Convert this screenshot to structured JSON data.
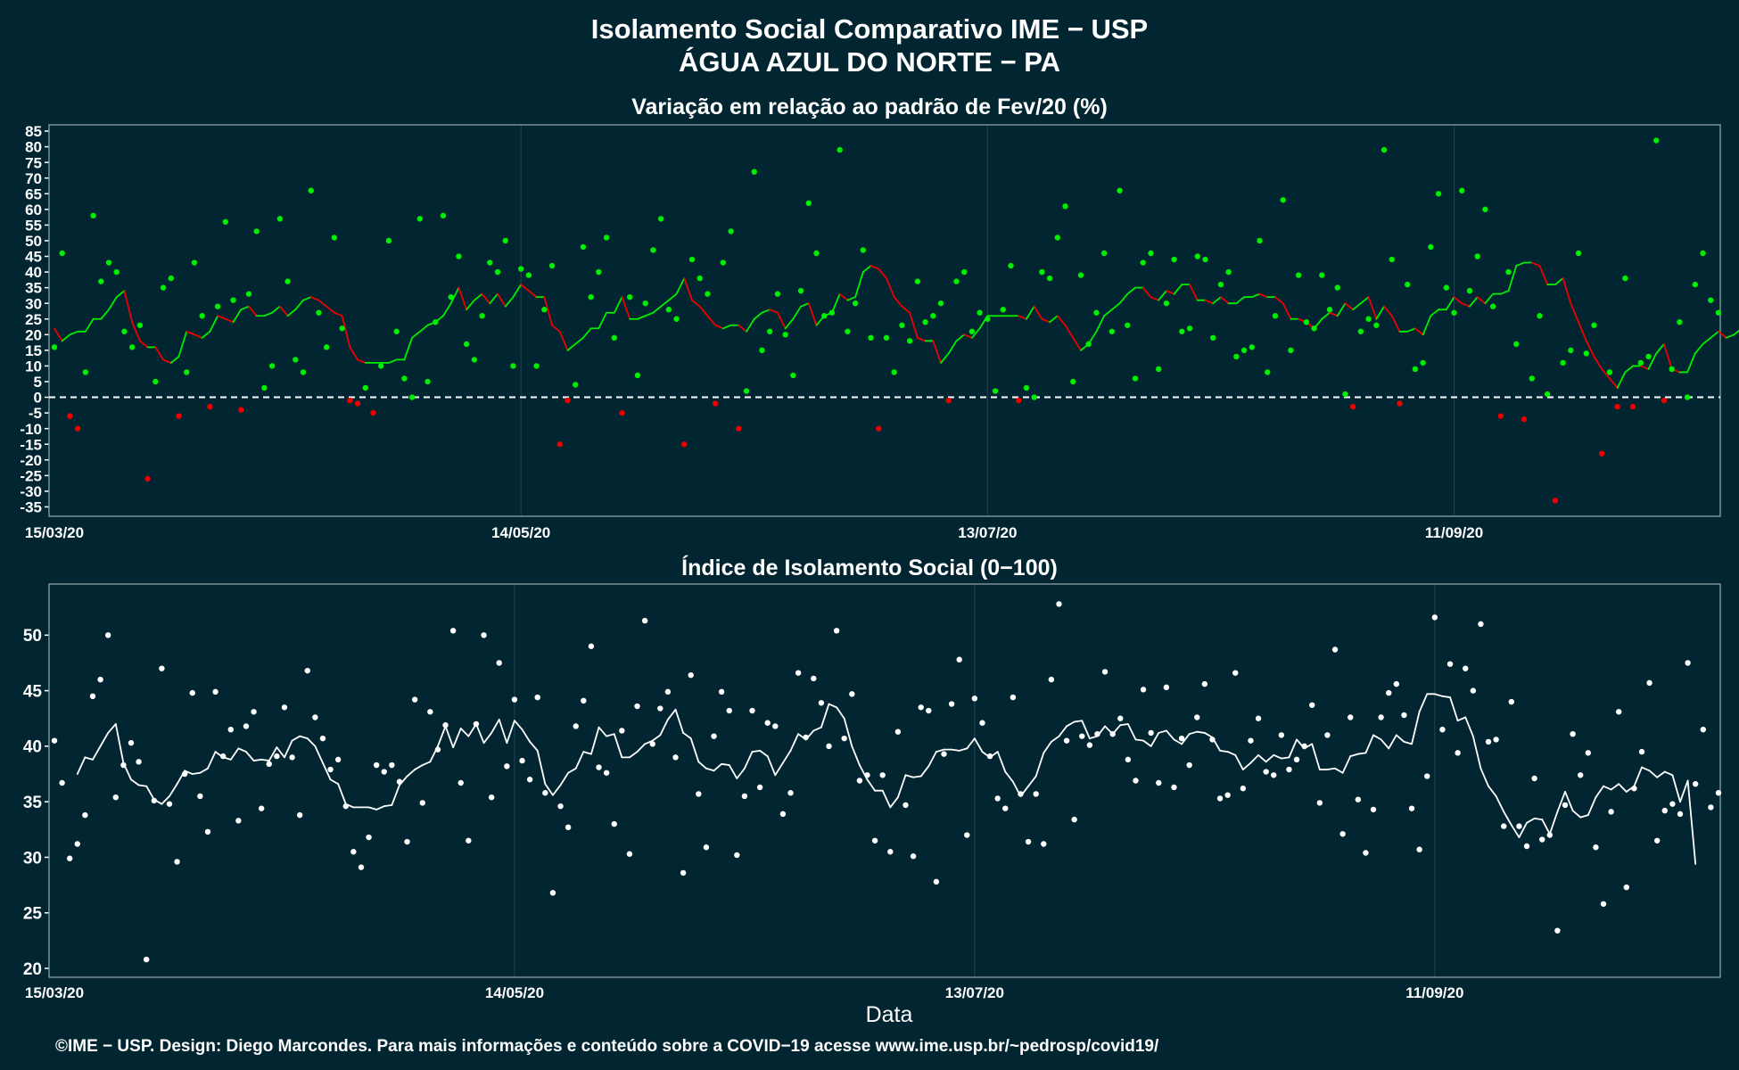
{
  "title_line1": "Isolamento Social Comparativo IME − USP",
  "title_line2": "ÁGUA AZUL DO NORTE − PA",
  "xlabel": "Data",
  "footer": "©IME − USP. Design: Diego Marcondes. Para mais informações e conteúdo sobre a COVID−19 acesse www.ime.usp.br/~pedrosp/covid19/",
  "colors": {
    "background": "#022631",
    "positive": "#00ee00",
    "negative": "#ee0000",
    "index": "#ffffff",
    "panel_border": "#9aa8ad",
    "grid": "#1f4450"
  },
  "chart_data": [
    {
      "type": "scatter",
      "title": "Variação em relação ao padrão de Fev/20 (%)",
      "x_start": "15/03/20",
      "x_ticks": [
        "15/03/20",
        "14/05/20",
        "13/07/20",
        "11/09/20"
      ],
      "y_ticks": [
        85,
        80,
        75,
        70,
        65,
        60,
        55,
        50,
        45,
        40,
        35,
        30,
        25,
        20,
        15,
        10,
        5,
        0,
        -5,
        -10,
        -15,
        -20,
        -25,
        -30,
        -35
      ],
      "ylim": [
        -38,
        87
      ],
      "reference_line": 0,
      "series": [
        {
          "kind": "points",
          "values": [
            16,
            46,
            -6,
            -10,
            8,
            58,
            37,
            43,
            40,
            21,
            16,
            23,
            -26,
            5,
            35,
            38,
            -6,
            8,
            43,
            26,
            -3,
            29,
            56,
            31,
            -4,
            33,
            53,
            3,
            10,
            57,
            37,
            12,
            8,
            66,
            27,
            16,
            51,
            22,
            -1,
            -2,
            3,
            -5,
            10,
            50,
            21,
            6,
            0,
            57,
            5,
            24,
            58,
            32,
            45,
            17,
            12,
            26,
            43,
            40,
            50,
            10,
            41,
            39,
            10,
            28,
            42,
            -15,
            -1,
            4,
            48,
            32,
            40,
            51,
            19,
            -5,
            32,
            7,
            30,
            47,
            57,
            28,
            25,
            -15,
            44,
            38,
            33,
            -2,
            43,
            53,
            -10,
            2,
            72,
            15,
            21,
            33,
            20,
            7,
            34,
            62,
            46,
            26,
            27,
            79,
            21,
            30,
            47,
            19,
            -10,
            19,
            8,
            23,
            18,
            37,
            24,
            26,
            30,
            -1,
            37,
            40,
            21,
            27,
            25,
            2,
            28,
            42,
            -1,
            3,
            0,
            40,
            38,
            51,
            61,
            5,
            39,
            17,
            27,
            46,
            21,
            66,
            23,
            6,
            43,
            46,
            9,
            30,
            44,
            21,
            22,
            45,
            44,
            19,
            36,
            40,
            13,
            15,
            16,
            50,
            8,
            26,
            63,
            15,
            39,
            24,
            22,
            39,
            28,
            35,
            1,
            -3,
            21,
            25,
            23,
            79,
            44,
            -2,
            36,
            9,
            11,
            48,
            65,
            35,
            27,
            66,
            34,
            45,
            60,
            29,
            -6,
            40,
            17,
            -7,
            6,
            26,
            1,
            -33,
            11,
            15,
            46,
            14,
            23,
            -18,
            8,
            -3,
            38,
            -3,
            11,
            13,
            82,
            -1,
            9,
            24,
            0,
            36,
            46,
            31,
            27
          ]
        },
        {
          "kind": "moving_average",
          "values": [
            22,
            18,
            20,
            21,
            21,
            25,
            25,
            28,
            32,
            34,
            24,
            18,
            16,
            16,
            12,
            11,
            13,
            21,
            20,
            19,
            21,
            26,
            25,
            24,
            28,
            29,
            26,
            26,
            27,
            29,
            26,
            28,
            31,
            32,
            31,
            29,
            27,
            26,
            16,
            12,
            11,
            11,
            11,
            11,
            12,
            12,
            19,
            21,
            23,
            24,
            26,
            30,
            35,
            28,
            31,
            33,
            30,
            33,
            29,
            32,
            36,
            34,
            32,
            32,
            23,
            21,
            15,
            17,
            19,
            22,
            22,
            27,
            27,
            32,
            25,
            25,
            26,
            27,
            29,
            31,
            33,
            38,
            31,
            29,
            26,
            23,
            22,
            23,
            23,
            21,
            25,
            27,
            28,
            27,
            22,
            25,
            29,
            30,
            23,
            26,
            27,
            33,
            31,
            32,
            40,
            42,
            41,
            38,
            32,
            29,
            27,
            19,
            18,
            18,
            11,
            14,
            18,
            20,
            19,
            22,
            26,
            26,
            26,
            26,
            26,
            25,
            29,
            25,
            24,
            26,
            23,
            19,
            15,
            17,
            21,
            26,
            28,
            30,
            33,
            35,
            35,
            32,
            31,
            34,
            33,
            36,
            36,
            31,
            31,
            30,
            32,
            30,
            30,
            32,
            32,
            33,
            32,
            32,
            30,
            25,
            25,
            24,
            22,
            25,
            27,
            26,
            30,
            28,
            30,
            32,
            25,
            29,
            26,
            21,
            21,
            22,
            20,
            26,
            28,
            28,
            32,
            30,
            29,
            32,
            30,
            33,
            33,
            34,
            42,
            43,
            43,
            42,
            36,
            36,
            38,
            30,
            24,
            18,
            13,
            9,
            6,
            3,
            8,
            10,
            10,
            9,
            14,
            17,
            9,
            8,
            8,
            14,
            17,
            19,
            21,
            19,
            20,
            22,
            28,
            21,
            21,
            23
          ]
        }
      ]
    },
    {
      "type": "scatter",
      "title": "Índice de Isolamento Social (0−100)",
      "x_start": "15/03/20",
      "x_ticks": [
        "15/03/20",
        "14/05/20",
        "13/07/20",
        "11/09/20"
      ],
      "y_ticks": [
        50,
        45,
        40,
        35,
        30,
        25,
        20
      ],
      "ylim": [
        19.2,
        54.6
      ],
      "series": [
        {
          "kind": "points",
          "values": [
            40.5,
            36.7,
            29.9,
            31.2,
            33.8,
            44.5,
            46.0,
            50.0,
            35.4,
            38.3,
            40.3,
            38.6,
            20.8,
            35.1,
            47.0,
            34.8,
            29.6,
            37.5,
            44.8,
            35.5,
            32.3,
            44.9,
            39.1,
            41.5,
            33.3,
            41.8,
            43.1,
            34.4,
            38.4,
            39.1,
            43.5,
            39.0,
            33.8,
            46.8,
            42.6,
            40.7,
            37.9,
            38.8,
            34.6,
            30.5,
            29.1,
            31.8,
            38.3,
            37.7,
            38.3,
            36.8,
            31.4,
            44.2,
            34.9,
            43.1,
            39.7,
            41.9,
            50.4,
            36.7,
            31.5,
            42.0,
            50.0,
            35.4,
            47.5,
            38.2,
            44.2,
            38.7,
            37.0,
            44.4,
            35.8,
            26.8,
            34.6,
            32.7,
            41.8,
            44.1,
            49.0,
            38.1,
            37.6,
            33.0,
            41.4,
            30.3,
            43.6,
            51.3,
            40.2,
            43.4,
            44.9,
            39.0,
            28.6,
            46.4,
            35.7,
            30.9,
            40.9,
            44.9,
            43.2,
            30.2,
            35.5,
            43.2,
            36.3,
            42.1,
            41.8,
            33.9,
            35.8,
            46.6,
            40.8,
            46.1,
            43.9,
            40.0,
            50.4,
            40.7,
            44.7,
            36.9,
            37.4,
            31.5,
            37.4,
            30.5,
            41.3,
            34.7,
            30.1,
            43.5,
            43.2,
            27.8,
            39.3,
            43.8,
            47.8,
            32.0,
            44.3,
            42.1,
            39.1,
            35.3,
            34.4,
            44.4,
            35.7,
            31.4,
            35.7,
            31.2,
            46.0,
            52.8,
            40.5,
            33.4,
            40.9,
            40.1,
            41.1,
            46.7,
            41.1,
            42.5,
            38.8,
            36.9,
            45.1,
            41.2,
            36.7,
            45.3,
            36.3,
            40.7,
            38.3,
            42.6,
            45.6,
            40.6,
            35.3,
            35.6,
            46.6,
            36.2,
            40.5,
            42.5,
            37.7,
            37.4,
            41.0,
            37.9,
            38.8,
            40.0,
            43.7,
            34.9,
            41.0,
            48.7,
            32.1,
            42.6,
            35.2,
            30.4,
            34.3,
            42.6,
            44.8,
            45.6,
            42.8,
            34.4,
            30.7,
            37.3,
            51.6,
            41.5,
            47.4,
            39.4,
            47.0,
            45.0,
            51.0,
            40.4,
            40.6,
            32.8,
            44.0,
            32.8,
            31.0,
            37.1,
            31.6,
            32.0,
            23.4,
            34.7,
            41.1,
            37.4,
            39.4,
            30.9,
            25.8,
            34.1,
            43.1,
            27.3,
            36.2,
            39.5,
            45.7,
            31.5,
            34.2,
            34.8,
            33.9,
            47.5,
            36.6,
            41.5,
            34.5,
            35.8
          ]
        },
        {
          "kind": "moving_average",
          "values": [
            null,
            null,
            null,
            37.5,
            39.0,
            38.8,
            40.0,
            41.2,
            42.0,
            38.5,
            37.0,
            36.5,
            36.4,
            35.2,
            34.8,
            35.5,
            36.6,
            37.8,
            37.5,
            37.6,
            38.0,
            39.5,
            39.0,
            38.8,
            39.8,
            39.5,
            38.7,
            38.8,
            38.7,
            39.9,
            39.0,
            40.5,
            40.9,
            40.7,
            40.0,
            38.5,
            37.0,
            36.6,
            34.8,
            34.5,
            34.5,
            34.5,
            34.3,
            34.6,
            34.7,
            36.5,
            37.3,
            37.9,
            38.3,
            38.6,
            40.0,
            41.8,
            39.9,
            41.6,
            40.9,
            42.0,
            40.3,
            41.2,
            42.4,
            40.3,
            42.3,
            41.5,
            40.4,
            39.6,
            36.6,
            35.6,
            36.5,
            37.6,
            38.0,
            39.5,
            39.3,
            41.7,
            40.9,
            41.1,
            39.0,
            39.0,
            39.5,
            40.2,
            40.5,
            41.0,
            42.4,
            43.3,
            41.2,
            40.7,
            38.6,
            38.0,
            37.8,
            38.4,
            38.3,
            37.1,
            38.0,
            39.5,
            39.6,
            39.1,
            37.4,
            38.5,
            39.6,
            41.1,
            40.6,
            41.4,
            41.7,
            43.8,
            43.5,
            42.5,
            40.0,
            38.3,
            37.0,
            36.0,
            36.0,
            34.5,
            35.4,
            37.4,
            37.2,
            37.3,
            38.2,
            39.5,
            39.7,
            39.7,
            39.6,
            39.8,
            40.7,
            39.5,
            39.0,
            39.5,
            37.7,
            36.8,
            35.5,
            36.4,
            37.3,
            39.4,
            40.4,
            40.9,
            41.8,
            42.2,
            42.3,
            40.7,
            40.9,
            41.8,
            41.1,
            41.9,
            42.0,
            40.6,
            40.5,
            40.0,
            41.2,
            41.4,
            40.6,
            40.2,
            41.1,
            41.3,
            41.2,
            40.8,
            39.6,
            39.5,
            39.2,
            37.9,
            38.5,
            39.2,
            38.6,
            39.2,
            38.9,
            39.0,
            40.6,
            39.8,
            40.2,
            37.9,
            37.9,
            38.0,
            37.6,
            39.1,
            39.3,
            39.4,
            41.0,
            40.6,
            39.8,
            41.0,
            40.4,
            40.2,
            43.1,
            44.7,
            44.7,
            44.5,
            44.4,
            42.3,
            42.6,
            40.9,
            38.0,
            36.4,
            35.5,
            34.1,
            32.9,
            31.8,
            33.1,
            33.5,
            33.4,
            32.1,
            34.1,
            35.9,
            34.2,
            33.6,
            33.8,
            35.4,
            36.4,
            36.1,
            36.6,
            35.9,
            36.4,
            38.1,
            37.8,
            37.2,
            37.7,
            37.4,
            35.0,
            36.9,
            29.4
          ]
        }
      ]
    }
  ]
}
